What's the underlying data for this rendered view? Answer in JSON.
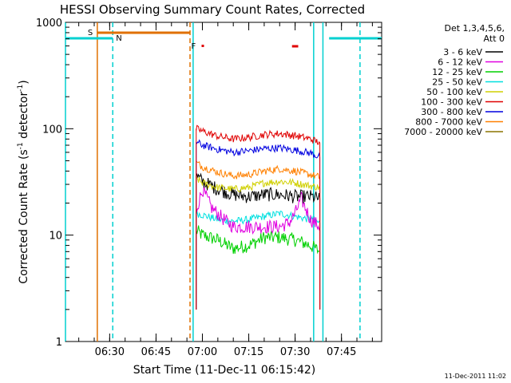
{
  "chart_data": {
    "type": "line",
    "title": "HESSI Observing Summary Count Rates, Corrected",
    "xlabel": "Start Time (11-Dec-11 06:15:42)",
    "ylabel_parts": [
      "Corrected Count Rate (s",
      "-1",
      " detector",
      "-1",
      ")"
    ],
    "yscale": "log",
    "ylim": [
      1,
      1000
    ],
    "xlim": [
      "06:15:42",
      "07:58:00"
    ],
    "x_ticks": [
      "06:30",
      "06:45",
      "07:00",
      "07:15",
      "07:30",
      "07:45"
    ],
    "y_ticks": [
      "1",
      "10",
      "100",
      "1000"
    ],
    "timestamp": "11-Dec-2011 11:02",
    "legend": {
      "title_lines": [
        "Det 1,3,4,5,6,",
        "Att 0"
      ],
      "placement": "right"
    },
    "series": [
      {
        "name": "3 - 6 keV",
        "color": "#000000",
        "x": [
          "06:58",
          "07:00",
          "07:05",
          "07:10",
          "07:15",
          "07:20",
          "07:25",
          "07:30",
          "07:35",
          "07:38"
        ],
        "y": [
          36,
          32,
          27,
          24,
          23,
          24,
          24,
          23,
          23,
          22
        ]
      },
      {
        "name": "6 - 12 keV",
        "color": "#e000e0",
        "x": [
          "06:58",
          "07:00",
          "07:03",
          "07:07",
          "07:10",
          "07:15",
          "07:20",
          "07:25",
          "07:28",
          "07:30",
          "07:32",
          "07:35",
          "07:38"
        ],
        "y": [
          17,
          27,
          18,
          14,
          12,
          12,
          12,
          12,
          13,
          16,
          22,
          14,
          12
        ]
      },
      {
        "name": "12 - 25 keV",
        "color": "#00d000",
        "x": [
          "06:58",
          "07:00",
          "07:05",
          "07:08",
          "07:10",
          "07:15",
          "07:20",
          "07:25",
          "07:30",
          "07:35",
          "07:38"
        ],
        "y": [
          11,
          10,
          9,
          8,
          7.5,
          8,
          9.5,
          9.5,
          9,
          8,
          7
        ]
      },
      {
        "name": "25 - 50 keV",
        "color": "#00e0e0",
        "x": [
          "06:58",
          "07:00",
          "07:05",
          "07:10",
          "07:15",
          "07:20",
          "07:25",
          "07:30",
          "07:35",
          "07:38"
        ],
        "y": [
          16,
          15.5,
          14,
          13.5,
          14,
          15,
          16,
          15,
          14,
          13
        ]
      },
      {
        "name": "50 - 100 keV",
        "color": "#d0d000",
        "x": [
          "06:58",
          "07:00",
          "07:05",
          "07:10",
          "07:15",
          "07:20",
          "07:25",
          "07:30",
          "07:35",
          "07:38"
        ],
        "y": [
          34,
          31,
          28,
          27,
          28,
          31,
          32,
          31,
          29,
          28
        ]
      },
      {
        "name": "100 - 300 keV",
        "color": "#e00000",
        "x": [
          "06:58",
          "07:00",
          "07:05",
          "07:10",
          "07:15",
          "07:20",
          "07:25",
          "07:30",
          "07:35",
          "07:38"
        ],
        "y": [
          100,
          95,
          85,
          80,
          83,
          88,
          90,
          86,
          80,
          74
        ]
      },
      {
        "name": "300 - 800 keV",
        "color": "#0000e0",
        "x": [
          "06:58",
          "07:00",
          "07:05",
          "07:10",
          "07:15",
          "07:20",
          "07:25",
          "07:30",
          "07:35",
          "07:38"
        ],
        "y": [
          75,
          70,
          64,
          60,
          62,
          65,
          66,
          63,
          59,
          54
        ]
      },
      {
        "name": "800 - 7000 keV",
        "color": "#ff8000",
        "x": [
          "06:58",
          "07:00",
          "07:05",
          "07:10",
          "07:15",
          "07:20",
          "07:25",
          "07:30",
          "07:35",
          "07:38"
        ],
        "y": [
          48,
          44,
          39,
          36,
          37,
          40,
          42,
          40,
          37,
          35
        ]
      },
      {
        "name": "7000 - 20000 keV",
        "color": "#8b7500",
        "x": [],
        "y": []
      }
    ],
    "annotations": [
      {
        "label": "S",
        "color": "#e07000",
        "x_start": "06:26",
        "x_end": "06:56",
        "style": "solid-bar"
      },
      {
        "label": "N",
        "color": "#00d0d0",
        "x_start": "06:15:42",
        "x_end": "06:31",
        "style": "solid-bar"
      },
      {
        "label": "F",
        "color": "#e00000",
        "x_start": "07:00",
        "x_end": "07:00",
        "style": "dot"
      },
      {
        "label": "",
        "color": "#e00000",
        "x_start": "07:29",
        "x_end": "07:31",
        "style": "short-bar"
      },
      {
        "label": "",
        "color": "#00d0d0",
        "x_start": "07:41",
        "x_end": "07:58",
        "style": "solid-bar"
      }
    ],
    "vertical_lines": [
      {
        "x": "06:15:42",
        "color": "#00d0d0",
        "dash": false
      },
      {
        "x": "06:26",
        "color": "#e07000",
        "dash": false
      },
      {
        "x": "06:31",
        "color": "#00d0d0",
        "dash": true
      },
      {
        "x": "06:56",
        "color": "#e07000",
        "dash": true
      },
      {
        "x": "06:57",
        "color": "#00d0d0",
        "dash": false
      },
      {
        "x": "07:36",
        "color": "#00d0d0",
        "dash": false
      },
      {
        "x": "07:39",
        "color": "#00d0d0",
        "dash": false
      },
      {
        "x": "07:51",
        "color": "#00d0d0",
        "dash": true
      }
    ]
  }
}
